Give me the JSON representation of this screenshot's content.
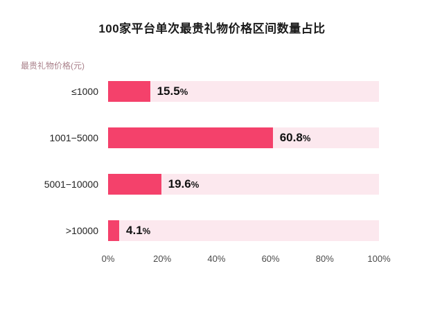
{
  "title": "100家平台单次最贵礼物价格区间数量占比",
  "axis_label": "最贵礼物价格(元)",
  "chart_data": {
    "type": "bar",
    "orientation": "horizontal",
    "title": "100家平台单次最贵礼物价格区间数量占比",
    "ylabel": "最贵礼物价格(元)",
    "xlabel": "",
    "categories": [
      "≤1000",
      "1001−5000",
      "5001−10000",
      ">10000"
    ],
    "values": [
      15.5,
      60.8,
      19.6,
      4.1
    ],
    "value_labels": [
      "15.5",
      "60.8",
      "19.6",
      "4.1"
    ],
    "unit": "%",
    "xlim": [
      0,
      100
    ],
    "grid": false,
    "legend": "none",
    "ticks": [
      {
        "label": "0%",
        "pos": 0
      },
      {
        "label": "20%",
        "pos": 20
      },
      {
        "label": "40%",
        "pos": 40
      },
      {
        "label": "60%",
        "pos": 60
      },
      {
        "label": "80%",
        "pos": 80
      },
      {
        "label": "100%",
        "pos": 100
      }
    ],
    "colors": {
      "bar": "#f4416b",
      "track": "#fce8ee",
      "title_text": "#1a1a1a",
      "axis_label_text": "#a9808a"
    }
  }
}
